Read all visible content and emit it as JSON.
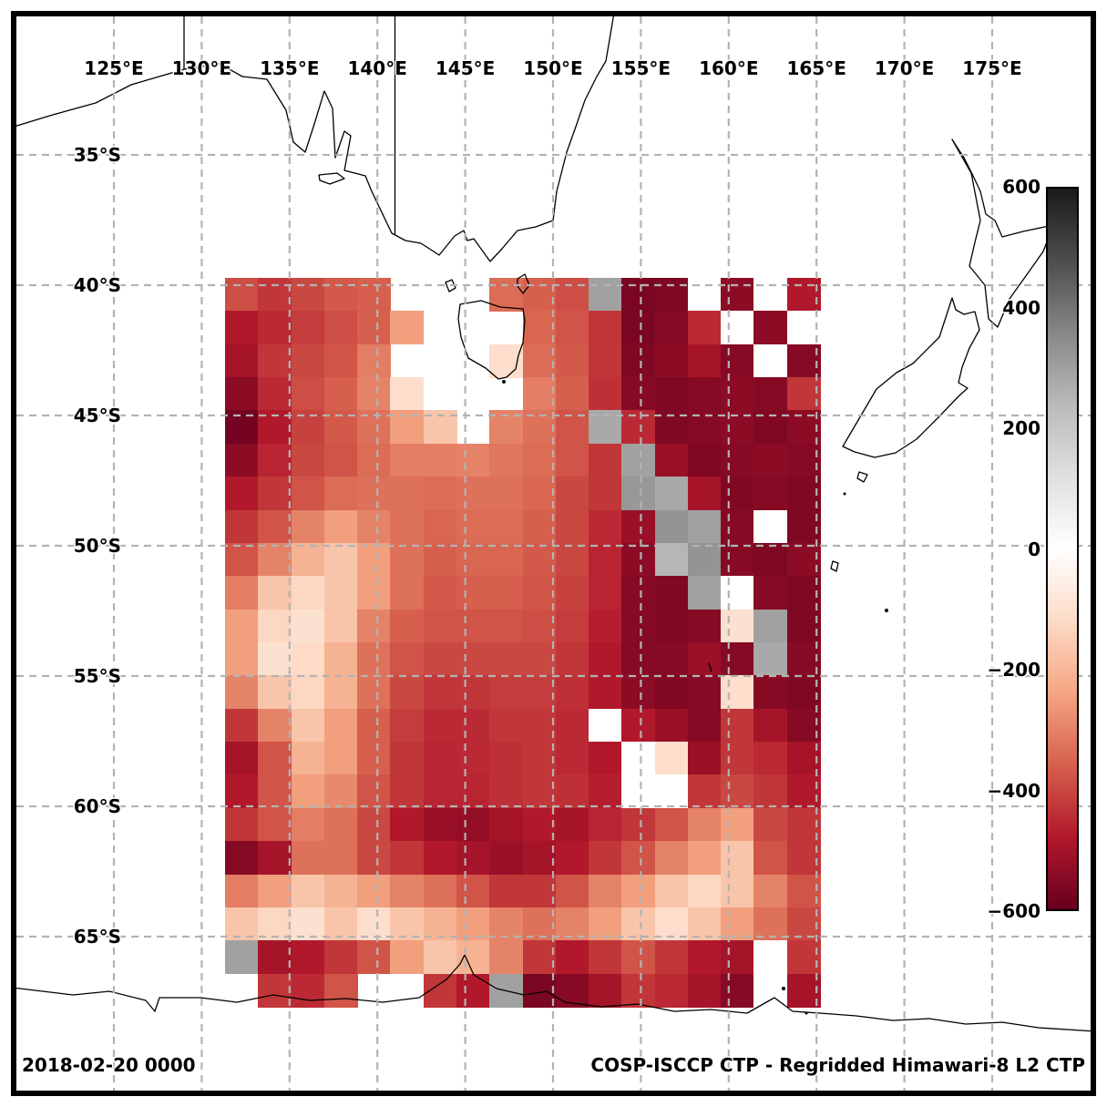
{
  "annotations": {
    "timestamp": "2018-02-20 0000",
    "title": "COSP-ISCCP CTP - Regridded Himawari-8 L2 CTP"
  },
  "axes": {
    "lon_ticks": [
      "125°E",
      "130°E",
      "135°E",
      "140°E",
      "145°E",
      "150°E",
      "155°E",
      "160°E",
      "165°E",
      "170°E",
      "175°E"
    ],
    "lat_ticks": [
      "35°S",
      "40°S",
      "45°S",
      "50°S",
      "55°S",
      "60°S",
      "65°S"
    ]
  },
  "colorbar": {
    "tick_labels": [
      "600",
      "400",
      "200",
      "0",
      "−200",
      "−400",
      "−600"
    ],
    "tick_values": [
      600,
      400,
      200,
      0,
      -200,
      -400,
      -600
    ],
    "vmin": -600,
    "vmax": 600,
    "colors_top_to_bottom": [
      "#1a1a1a",
      "#4d4d4d",
      "#878787",
      "#bababa",
      "#e0e0e0",
      "#ffffff",
      "#fddbc7",
      "#f4a582",
      "#d6604d",
      "#b2182b",
      "#67001f"
    ]
  },
  "chart_data": {
    "type": "heatmap",
    "title": "COSP-ISCCP CTP - Regridded Himawari-8 L2 CTP",
    "timestamp": "2018-02-20 0000",
    "colormap": "RdGy",
    "vmin": -600,
    "vmax": 600,
    "lon_extent_deg_east": [
      131.3,
      165.2
    ],
    "lat_extent_deg": [
      -67.7,
      -39.7
    ],
    "grid_cols": 18,
    "grid_rows": 22,
    "values": [
      [
        -390,
        -430,
        -400,
        -370,
        -360,
        null,
        null,
        null,
        -340,
        -360,
        -390,
        300,
        -570,
        -560,
        0,
        -540,
        0,
        -480
      ],
      [
        -480,
        -450,
        -420,
        -390,
        -360,
        -250,
        null,
        null,
        null,
        -350,
        -380,
        -430,
        -570,
        -550,
        -450,
        0,
        -540,
        0
      ],
      [
        -500,
        -430,
        -400,
        -380,
        -310,
        null,
        null,
        null,
        -110,
        -340,
        -370,
        -430,
        -560,
        -540,
        -500,
        -550,
        0,
        -550
      ],
      [
        -540,
        -450,
        -390,
        -360,
        -300,
        -110,
        null,
        null,
        null,
        -310,
        -360,
        -440,
        -550,
        -560,
        -550,
        -540,
        -550,
        -430
      ],
      [
        -580,
        -480,
        -410,
        -370,
        -330,
        -250,
        -170,
        null,
        -300,
        -330,
        -380,
        280,
        -450,
        -560,
        -550,
        -540,
        -560,
        -540
      ],
      [
        -540,
        -460,
        -400,
        -380,
        -340,
        -310,
        -310,
        -300,
        -320,
        -340,
        -380,
        -430,
        300,
        -520,
        -560,
        -550,
        -540,
        -550
      ],
      [
        -480,
        -430,
        -380,
        -340,
        -330,
        -330,
        -340,
        -330,
        -330,
        -350,
        -400,
        -430,
        320,
        280,
        -500,
        -560,
        -550,
        -560
      ],
      [
        -430,
        -380,
        -300,
        -250,
        -300,
        -330,
        -350,
        -340,
        -340,
        -360,
        -400,
        -450,
        -520,
        330,
        300,
        -550,
        0,
        -560
      ],
      [
        -380,
        -300,
        -210,
        -170,
        -250,
        -330,
        -360,
        -350,
        -350,
        -370,
        -400,
        -460,
        -540,
        250,
        330,
        -550,
        -560,
        -540
      ],
      [
        -310,
        -170,
        -130,
        -170,
        -250,
        -330,
        -370,
        -360,
        -360,
        -380,
        -410,
        -460,
        -550,
        -560,
        300,
        0,
        -550,
        -560
      ],
      [
        -250,
        -130,
        -100,
        -170,
        -300,
        -360,
        -380,
        -380,
        -380,
        -390,
        -420,
        -470,
        -550,
        -560,
        -550,
        -100,
        300,
        -560
      ],
      [
        -250,
        -100,
        -120,
        -210,
        -330,
        -380,
        -400,
        -400,
        -400,
        -400,
        -430,
        -480,
        -550,
        -550,
        -520,
        -550,
        280,
        -550
      ],
      [
        -300,
        -170,
        -130,
        -210,
        -330,
        -400,
        -430,
        -430,
        -420,
        -420,
        -440,
        -480,
        -540,
        -560,
        -550,
        -110,
        -550,
        -560
      ],
      [
        -430,
        -300,
        -170,
        -250,
        -360,
        -420,
        -450,
        -450,
        -430,
        -430,
        -450,
        0,
        -480,
        -520,
        -550,
        -430,
        -500,
        -550
      ],
      [
        -500,
        -380,
        -210,
        -250,
        -360,
        -430,
        -460,
        -450,
        -440,
        -430,
        -450,
        -480,
        0,
        -110,
        -520,
        -430,
        -450,
        -500
      ],
      [
        -480,
        -380,
        -250,
        -290,
        -380,
        -430,
        -460,
        -460,
        -440,
        -430,
        -440,
        -470,
        0,
        0,
        -430,
        -400,
        -430,
        -480
      ],
      [
        -430,
        -380,
        -310,
        -330,
        -400,
        -480,
        -520,
        -530,
        -500,
        -480,
        -500,
        -460,
        -430,
        -380,
        -300,
        -250,
        -400,
        -430
      ],
      [
        -550,
        -500,
        -330,
        -330,
        -400,
        -430,
        -480,
        -500,
        -520,
        -500,
        -480,
        -430,
        -380,
        -300,
        -250,
        -170,
        -380,
        -430
      ],
      [
        -310,
        -250,
        -170,
        -210,
        -250,
        -300,
        -330,
        -380,
        -430,
        -430,
        -380,
        -300,
        -250,
        -170,
        -130,
        -170,
        -300,
        -380
      ],
      [
        -170,
        -130,
        -100,
        -170,
        -110,
        -170,
        -210,
        -250,
        -300,
        -330,
        -300,
        -250,
        -170,
        -110,
        -170,
        -250,
        -330,
        -400
      ],
      [
        300,
        -500,
        -480,
        -430,
        -380,
        -250,
        -170,
        -210,
        -300,
        -430,
        -480,
        -430,
        -380,
        -430,
        -480,
        -500,
        0,
        -430
      ],
      [
        null,
        -430,
        -450,
        -380,
        null,
        null,
        -430,
        -480,
        300,
        -570,
        -550,
        -500,
        -430,
        -450,
        -500,
        -550,
        0,
        -500
      ]
    ]
  }
}
